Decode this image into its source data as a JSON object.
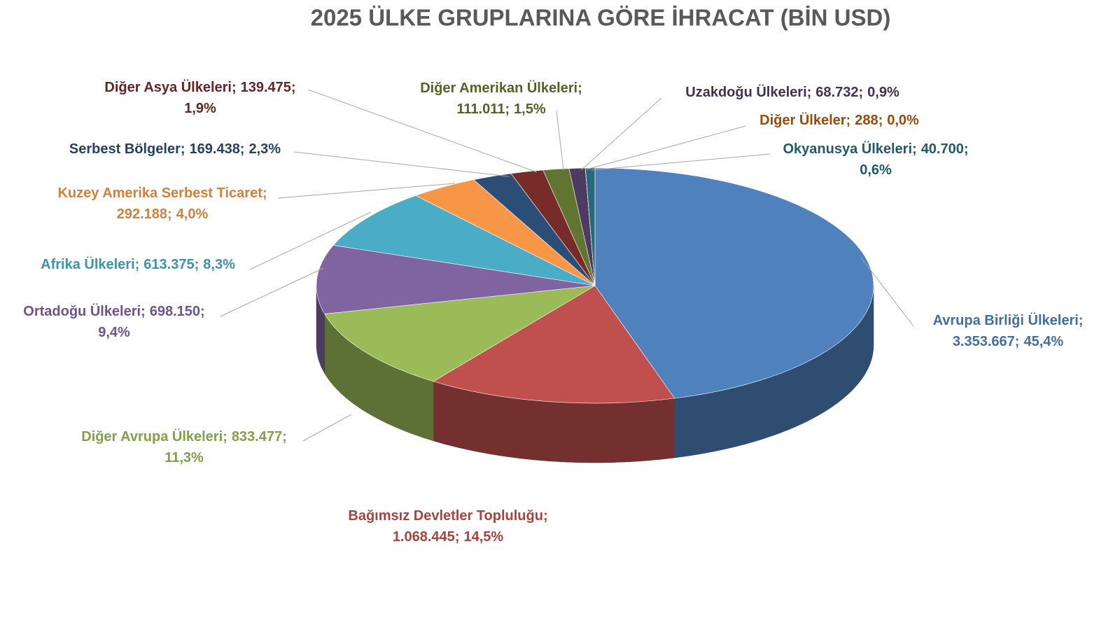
{
  "chart_data": {
    "type": "pie",
    "title": "2025 ÜLKE GRUPLARINA GÖRE İHRACAT (BİN USD)",
    "categories": [
      "Avrupa Birliği Ülkeleri;",
      "Bağımsız Devletler Topluluğu;",
      "Diğer Avrupa Ülkeleri;",
      "Ortadoğu Ülkeleri;",
      "Afrika Ülkeleri;",
      "Kuzey Amerika Serbest Ticaret;",
      "Serbest Bölgeler;",
      "Diğer Asya Ülkeleri;",
      "Diğer Amerikan Ülkeleri;",
      "Uzakdoğu Ülkeleri;",
      "Diğer Ülkeler;",
      "Okyanusya Ülkeleri;"
    ],
    "values": [
      3353667,
      1068445,
      833477,
      698150,
      613375,
      292188,
      169438,
      139475,
      111011,
      68732,
      288,
      40700
    ],
    "value_labels": [
      "3.353.667;",
      "1.068.445;",
      "833.477;",
      "698.150;",
      "613.375;",
      "292.188;",
      "169.438;",
      "139.475;",
      "111.011;",
      "68.732;",
      "288;",
      "40.700;"
    ],
    "percents": [
      45.4,
      14.5,
      11.3,
      9.4,
      8.3,
      4.0,
      2.3,
      1.9,
      1.5,
      0.9,
      0.0,
      0.6
    ],
    "percent_labels": [
      "45,4%",
      "14,5%",
      "11,3%",
      "9,4%",
      "8,3%",
      "4,0%",
      "2,3%",
      "1,9%",
      "1,5%",
      "0,9%",
      "0,0%",
      "0,6%"
    ],
    "colors": [
      "#4f81bd",
      "#c0504d",
      "#9bbb59",
      "#8064a2",
      "#4bacc6",
      "#f79646",
      "#2c4d75",
      "#772c2a",
      "#5f7530",
      "#4d3b62",
      "#b65708",
      "#276a7c"
    ]
  }
}
